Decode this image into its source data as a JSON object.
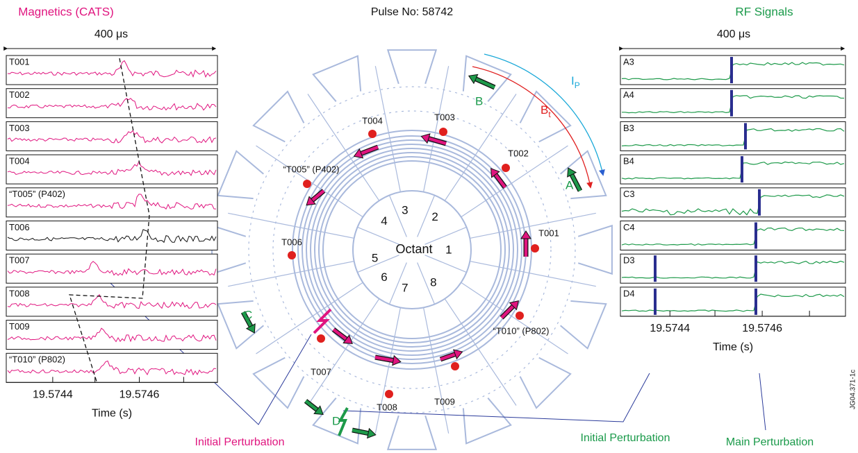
{
  "title": "Pulse No: 58742",
  "magnetics": {
    "title": "Magnetics (CATS)",
    "span": "400 μs",
    "panels": [
      "T001",
      "T002",
      "T003",
      "T004",
      "“T005” (P402)",
      "T006",
      "T007",
      "T008",
      "T009",
      "“T010” (P802)"
    ],
    "xticks": [
      "19.5744",
      "19.5746"
    ],
    "xlabel": "Time (s)"
  },
  "rf": {
    "title": "RF Signals",
    "span": "400 μs",
    "panels": [
      "A3",
      "A4",
      "B3",
      "B4",
      "C3",
      "C4",
      "D3",
      "D4"
    ],
    "xticks": [
      "19.5744",
      "19.5746"
    ],
    "xlabel": "Time (s)"
  },
  "octant": {
    "label": "Octant",
    "numbers": [
      "1",
      "2",
      "3",
      "4",
      "5",
      "6",
      "7",
      "8"
    ]
  },
  "sensors": [
    "T001",
    "T002",
    "T003",
    "T004",
    "“T005” (P402)",
    "T006",
    "T007",
    "T008",
    "T009",
    "“T010” (P802)"
  ],
  "antennas": [
    "A",
    "B",
    "C",
    "D"
  ],
  "current": {
    "main": "I",
    "sub": "P"
  },
  "field": {
    "main": "B",
    "sub": "t"
  },
  "annotations": {
    "magnetics_initial": "Initial Perturbation",
    "rf_initial": "Initial Perturbation",
    "rf_main": "Main Perturbation"
  },
  "figure_id": "JG04.371-1c"
}
